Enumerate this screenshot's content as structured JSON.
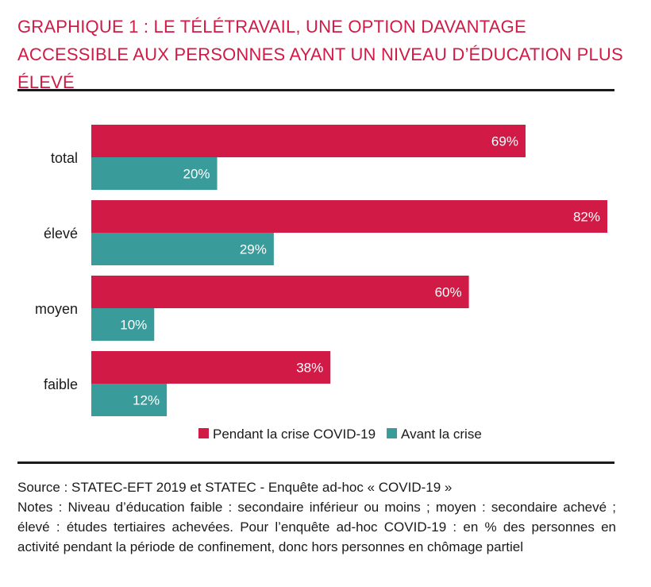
{
  "title": "GRAPHIQUE 1 : LE TÉLÉTRAVAIL, UNE OPTION DAVANTAGE ACCESSIBLE AUX PERSONNES AYANT UN NIVEAU D’ÉDUCATION PLUS ÉLEVÉ",
  "colors": {
    "crisis": "#d11a45",
    "before": "#3a9c9a",
    "title": "#d11a45"
  },
  "chart_data": {
    "type": "bar",
    "orientation": "horizontal",
    "categories": [
      "total",
      "élevé",
      "moyen",
      "faible"
    ],
    "series": [
      {
        "name": "Pendant la crise COVID-19",
        "values": [
          69,
          82,
          60,
          38
        ],
        "labels": [
          "69%",
          "82%",
          "60%",
          "38%"
        ]
      },
      {
        "name": "Avant la crise",
        "values": [
          20,
          29,
          10,
          12
        ],
        "labels": [
          "20%",
          "29%",
          "10%",
          "12%"
        ]
      }
    ],
    "xlim": [
      0,
      82
    ],
    "legend_position": "bottom"
  },
  "source": "Source : STATEC-EFT 2019 et STATEC - Enquête ad-hoc « COVID-19 »",
  "notes": "Notes : Niveau d’éducation faible : secondaire inférieur ou moins ; moyen : secondaire achevé ; élevé : études tertiaires achevées. Pour l’enquête ad-hoc COVID-19 : en % des personnes en activité pendant la période de confinement, donc hors personnes en chômage partiel"
}
